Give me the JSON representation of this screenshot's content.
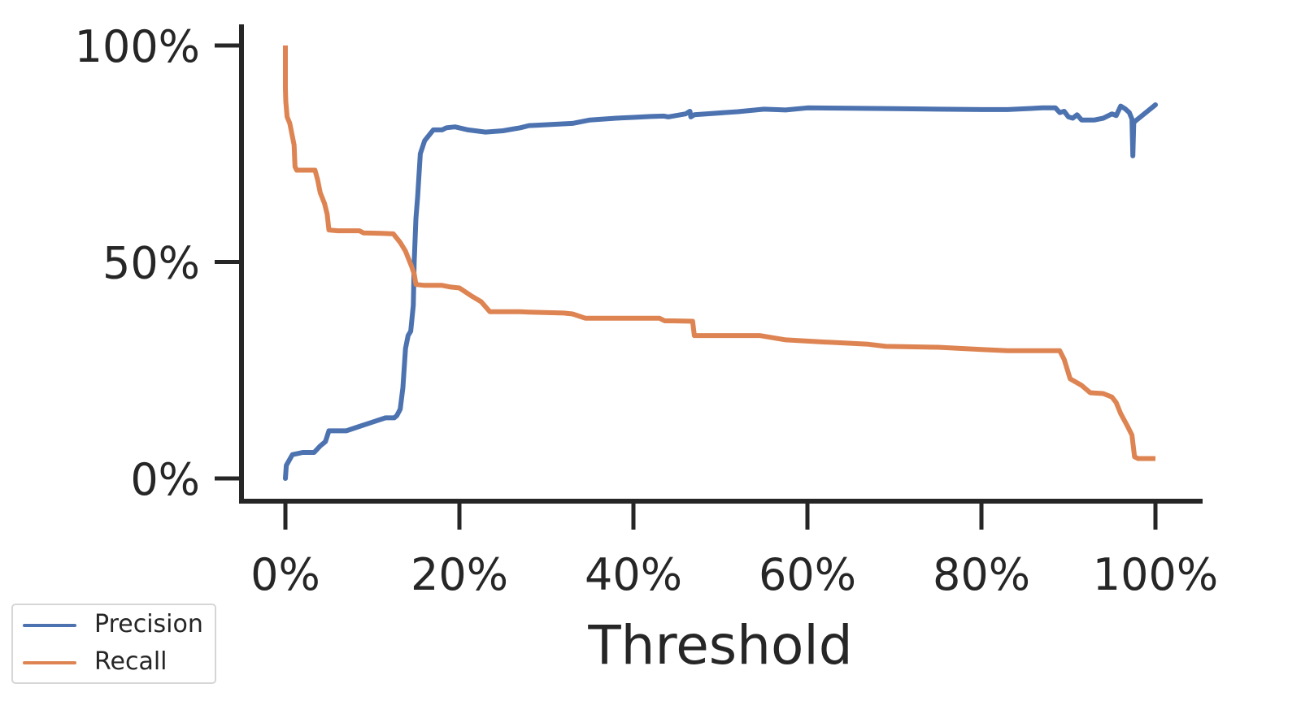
{
  "chart_data": {
    "type": "line",
    "title": "",
    "xlabel": "Threshold",
    "ylabel": "",
    "xlim": [
      0,
      100
    ],
    "ylim": [
      0,
      100
    ],
    "x_ticks": [
      "0%",
      "20%",
      "40%",
      "60%",
      "80%",
      "100%"
    ],
    "y_ticks": [
      "0%",
      "50%",
      "100%"
    ],
    "grid": false,
    "legend_position": "lower left (outside)",
    "series": [
      {
        "name": "Precision",
        "color": "#4c72b0",
        "x": [
          0,
          0.1,
          0.8,
          2.0,
          3.3,
          4.0,
          4.6,
          5.0,
          7.0,
          8.5,
          10.0,
          11.5,
          12.5,
          12.8,
          13.2,
          13.5,
          13.8,
          14.1,
          14.4,
          14.7,
          14.8,
          15.0,
          15.2,
          15.5,
          16.0,
          17.0,
          18.0,
          18.5,
          19.5,
          21.0,
          23.0,
          25.0,
          27.0,
          28.0,
          29.0,
          31.0,
          33.0,
          35.0,
          38.0,
          40.0,
          42.0,
          43.5,
          44.0,
          46.0,
          46.5,
          46.6,
          47.0,
          49.0,
          52.0,
          55.0,
          57.5,
          60.0,
          65.0,
          70.0,
          75.0,
          80.0,
          83.0,
          87.0,
          88.5,
          89.0,
          89.5,
          90.0,
          90.5,
          91.0,
          91.5,
          92.0,
          93.0,
          94.0,
          95.0,
          95.5,
          96.0,
          96.5,
          97.0,
          97.3,
          97.4,
          97.5,
          97.6,
          100.0
        ],
        "y": [
          0,
          3,
          5.5,
          6,
          6,
          7.5,
          8.5,
          11,
          11,
          12,
          13,
          14,
          14,
          14.5,
          16,
          21,
          30,
          33,
          34,
          40,
          50,
          60,
          65,
          75,
          78,
          80.5,
          80.5,
          81,
          81.2,
          80.5,
          80,
          80.3,
          81,
          81.5,
          81.6,
          81.8,
          82,
          82.8,
          83.2,
          83.4,
          83.6,
          83.7,
          83.5,
          84.2,
          84.8,
          83.5,
          84,
          84.3,
          84.7,
          85.3,
          85.1,
          85.6,
          85.5,
          85.4,
          85.3,
          85.2,
          85.2,
          85.6,
          85.6,
          84.5,
          84.8,
          83.5,
          83.2,
          84,
          82.8,
          82.8,
          82.8,
          83.2,
          84.2,
          83.8,
          86,
          85.4,
          84.5,
          83,
          74.5,
          82,
          82.4,
          86.3
        ]
      },
      {
        "name": "Recall",
        "color": "#dd8452",
        "x": [
          0,
          0,
          0.05,
          0.2,
          0.5,
          1.0,
          1.1,
          1.3,
          2.0,
          3.4,
          3.7,
          4.0,
          4.5,
          4.8,
          5.0,
          6.0,
          8.5,
          9.0,
          11.0,
          12.4,
          13.2,
          13.8,
          14.2,
          14.5,
          14.8,
          15.0,
          16.0,
          18.0,
          19.0,
          20.0,
          21.5,
          22.5,
          23.5,
          27.0,
          28.0,
          32.0,
          33.0,
          34.5,
          40.0,
          43.0,
          43.6,
          44.5,
          46.8,
          47.0,
          50.0,
          54.5,
          57.5,
          62.0,
          67.0,
          69.0,
          75.0,
          80.0,
          83.0,
          88.0,
          89.0,
          89.5,
          90.2,
          91.5,
          92.5,
          94.0,
          95.0,
          95.5,
          96.0,
          96.8,
          97.3,
          97.6,
          98.0,
          100.0
        ],
        "y": [
          100,
          90,
          87,
          83.5,
          82,
          77,
          72,
          71.2,
          71.2,
          71.2,
          69,
          66,
          63.5,
          61,
          57.4,
          57.2,
          57.2,
          56.7,
          56.6,
          56.5,
          54.5,
          52.5,
          50.5,
          49,
          47.2,
          44.8,
          44.6,
          44.6,
          44.2,
          44,
          42,
          40.8,
          38.5,
          38.5,
          38.4,
          38.2,
          38,
          37,
          37,
          37,
          36.4,
          36.4,
          36.3,
          33,
          33,
          33,
          32,
          31.5,
          31,
          30.5,
          30.3,
          29.8,
          29.5,
          29.5,
          29.5,
          27.5,
          23,
          21.5,
          19.8,
          19.6,
          18.8,
          17.5,
          15,
          12,
          10,
          5,
          4.6,
          4.6
        ]
      }
    ]
  },
  "axes": {
    "x_title": "Threshold",
    "x_tick_labels": [
      "0%",
      "20%",
      "40%",
      "60%",
      "80%",
      "100%"
    ],
    "y_tick_labels": [
      "0%",
      "50%",
      "100%"
    ]
  },
  "legend": {
    "items": [
      {
        "label": "Precision",
        "color": "#4c72b0"
      },
      {
        "label": "Recall",
        "color": "#dd8452"
      }
    ]
  },
  "colors": {
    "axis": "#262626",
    "legend_border": "#d6d6d6"
  }
}
